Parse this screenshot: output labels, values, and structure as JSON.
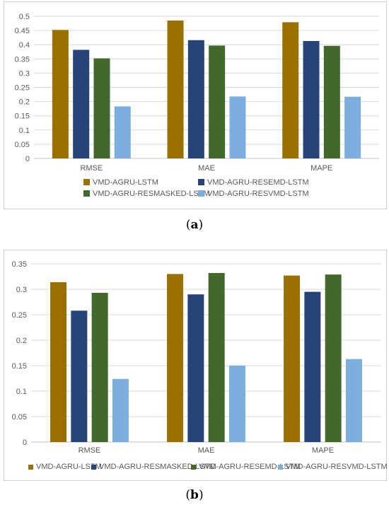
{
  "captions": [
    "a",
    "b"
  ],
  "chart_data": [
    {
      "type": "bar",
      "categories": [
        "RMSE",
        "MAE",
        "MAPE"
      ],
      "series": [
        {
          "name": "VMD-AGRU-LSTM",
          "color": "#9a7000",
          "values": [
            0.452,
            0.485,
            0.479
          ]
        },
        {
          "name": "VMD-AGRU-RESEMD-LSTM",
          "color": "#264478",
          "values": [
            0.382,
            0.416,
            0.413
          ]
        },
        {
          "name": "VMD-AGRU-RESMASKED-LSTM",
          "color": "#43682b",
          "values": [
            0.352,
            0.397,
            0.396
          ]
        },
        {
          "name": "VMD-AGRU-RESVMD-LSTM",
          "color": "#7cafdd",
          "values": [
            0.183,
            0.218,
            0.217
          ]
        }
      ],
      "yticks": [
        "0",
        "0.05",
        "0.1",
        "0.15",
        "0.2",
        "0.25",
        "0.3",
        "0.35",
        "0.4",
        "0.45",
        "0.5"
      ],
      "ylim": [
        0,
        0.5
      ],
      "grid": true,
      "legend": "bottom"
    },
    {
      "type": "bar",
      "categories": [
        "RMSE",
        "MAE",
        "MAPE"
      ],
      "series": [
        {
          "name": "VMD-AGRU-LSTM",
          "color": "#9a7000",
          "values": [
            0.314,
            0.33,
            0.327
          ]
        },
        {
          "name": "VMD-AGRU-RESMASKED-LSTM",
          "color": "#264478",
          "values": [
            0.258,
            0.29,
            0.295
          ]
        },
        {
          "name": "VMD-AGRU-RESEMD-LSTM",
          "color": "#43682b",
          "values": [
            0.293,
            0.332,
            0.329
          ]
        },
        {
          "name": "VMD-AGRU-RESVMD-LSTM",
          "color": "#7cafdd",
          "values": [
            0.124,
            0.15,
            0.163
          ]
        }
      ],
      "yticks": [
        "0",
        "0.05",
        "0.1",
        "0.15",
        "0.2",
        "0.25",
        "0.3",
        "0.35"
      ],
      "ylim": [
        0,
        0.35
      ],
      "grid": true,
      "legend": "bottom"
    }
  ]
}
